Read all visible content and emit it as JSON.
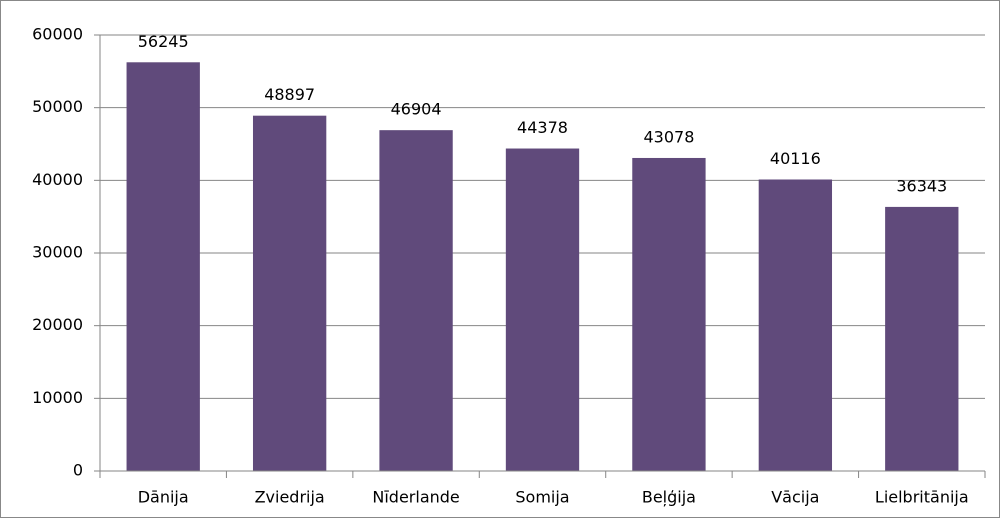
{
  "chart_data": {
    "type": "bar",
    "categories": [
      "Dānija",
      "Zviedrija",
      "Nīderlande",
      "Somija",
      "Beļģija",
      "Vācija",
      "Lielbritānija"
    ],
    "values": [
      56245,
      48897,
      46904,
      44378,
      43078,
      40116,
      36343
    ],
    "color": "#604a7b",
    "ylim": [
      0,
      60000
    ],
    "yticks": [
      0,
      10000,
      20000,
      30000,
      40000,
      50000,
      60000
    ],
    "grid": true,
    "value_labels_shown": true
  }
}
